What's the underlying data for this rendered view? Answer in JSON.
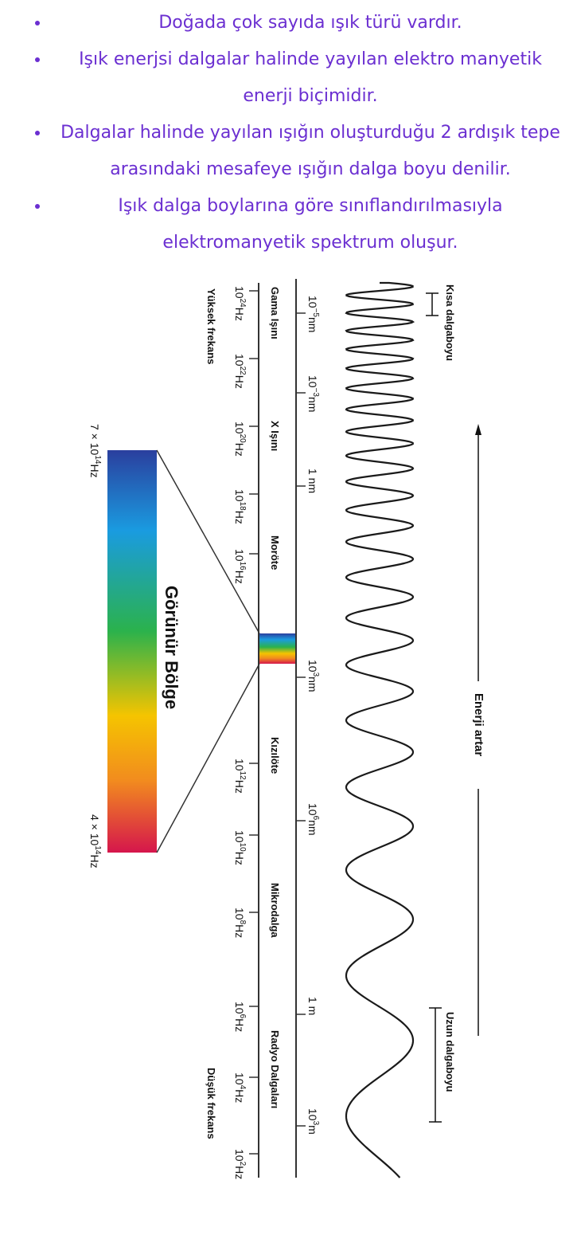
{
  "bullets": [
    "Doğada çok sayıda ışık türü vardır.",
    "Işık enerjsi dalgalar halinde yayılan elektro manyetik enerji biçimidir.",
    "Dalgalar halinde yayılan ışığın oluşturduğu 2 ardışık tepe arasındaki mesafeye ışığın dalga boyu denilir.",
    "Işık dalga boylarına göre sınıflandırılmasıyla elektromanyetik spektrum oluşur."
  ],
  "diagram": {
    "frequency_ends": {
      "high": "Yüksek frekans",
      "low": "Düşük frekans"
    },
    "frequency_ticks": [
      {
        "base": "10",
        "exp": "24",
        "unit": "Hz"
      },
      {
        "base": "10",
        "exp": "22",
        "unit": "Hz"
      },
      {
        "base": "10",
        "exp": "20",
        "unit": "Hz"
      },
      {
        "base": "10",
        "exp": "18",
        "unit": "Hz"
      },
      {
        "base": "10",
        "exp": "16",
        "unit": "Hz"
      },
      {
        "base": "10",
        "exp": "12",
        "unit": "Hz"
      },
      {
        "base": "10",
        "exp": "10",
        "unit": "Hz"
      },
      {
        "base": "10",
        "exp": "8",
        "unit": "Hz"
      },
      {
        "base": "10",
        "exp": "6",
        "unit": "Hz"
      },
      {
        "base": "10",
        "exp": "4",
        "unit": "Hz"
      },
      {
        "base": "10",
        "exp": "2",
        "unit": "Hz"
      }
    ],
    "regions": [
      "Gama Işını",
      "X Işını",
      "Moröte",
      "Kızılöte",
      "Mikrodalga",
      "Radyo Dalgaları"
    ],
    "wavelength_ticks": [
      {
        "base": "10",
        "exp": "−5",
        "unit": "nm"
      },
      {
        "base": "10",
        "exp": "−3",
        "unit": "nm"
      },
      {
        "base": "1",
        "exp": "",
        "unit": "nm"
      },
      {
        "base": "10",
        "exp": "3",
        "unit": "nm"
      },
      {
        "base": "10",
        "exp": "6",
        "unit": "nm"
      },
      {
        "base": "1",
        "exp": "",
        "unit": "m"
      },
      {
        "base": "10",
        "exp": "3",
        "unit": "m"
      }
    ],
    "short_wave_label": "Kısa dalgaboyu",
    "long_wave_label": "Uzun dalgaboyu",
    "energy_label": "Enerji artar",
    "visible_label": "Görünür Bölge",
    "visible_top": {
      "base": "7 × 10",
      "exp": "14",
      "unit": "Hz"
    },
    "visible_bottom": {
      "base": "4 × 10",
      "exp": "14",
      "unit": "Hz"
    },
    "spectrum_colors": [
      "#2a3f9e",
      "#1a9be0",
      "#2bb24c",
      "#f5c400",
      "#f28c1e",
      "#d5164c"
    ]
  }
}
